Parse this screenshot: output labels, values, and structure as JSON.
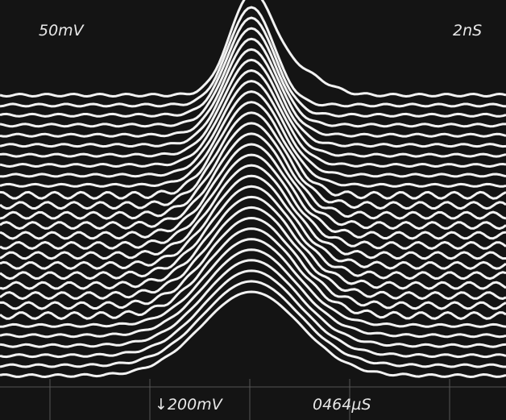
{
  "screen": {
    "top_left_label": "50mV",
    "top_right_label": "2nS",
    "bottom_left_label": "↓200mV",
    "bottom_right_label": "0464µS"
  }
}
